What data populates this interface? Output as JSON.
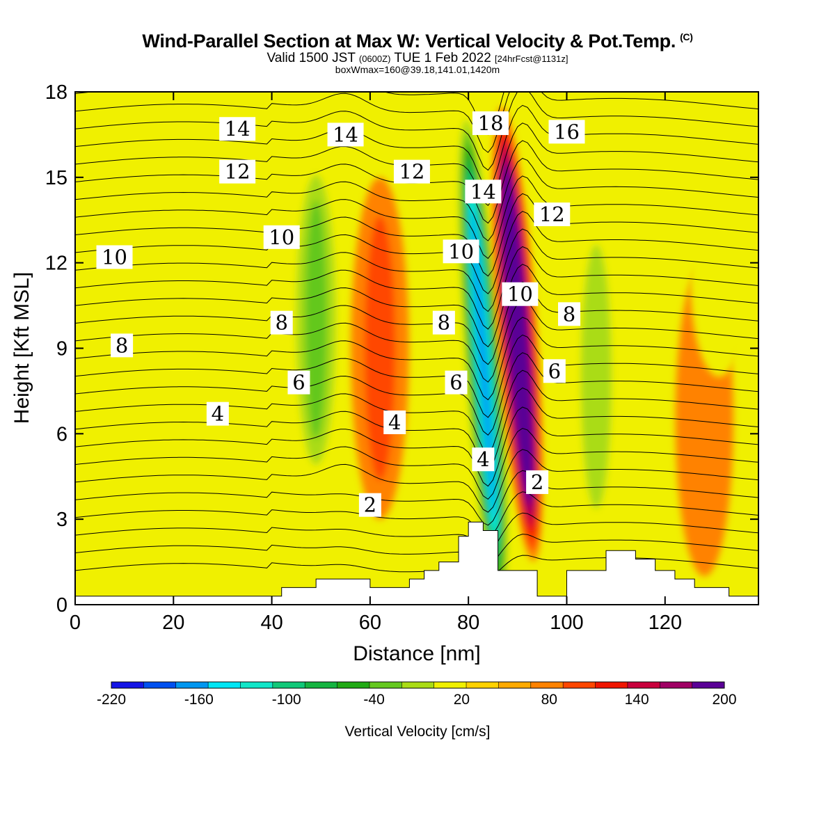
{
  "chart_data": {
    "type": "heatmap",
    "title": "Wind-Parallel Section at Max W: Vertical Velocity & Pot.Temp.",
    "title_mark": "(C)",
    "subtitle_main": "Valid 1500 JST",
    "subtitle_zulu": "(0600Z)",
    "subtitle_date": "TUE 1 Feb 2022",
    "subtitle_fcst": "[24hrFcst@1131z]",
    "subtitle2": "boxWmax=160@39.18,141.01,1420m",
    "xlabel": "Distance [nm]",
    "ylabel": "Height [Kft MSL]",
    "xlim": [
      0,
      139
    ],
    "ylim": [
      0,
      18
    ],
    "xticks": [
      0,
      20,
      40,
      60,
      80,
      100,
      120
    ],
    "yticks": [
      0,
      3,
      6,
      9,
      12,
      15,
      18
    ],
    "colorbar": {
      "title": "Vertical Velocity [cm/s]",
      "min": -220,
      "max": 200,
      "step": 20,
      "tick_values": [
        -220,
        -160,
        -100,
        -40,
        20,
        80,
        140,
        200
      ],
      "colors": [
        "#1414e6",
        "#0050f0",
        "#0096f0",
        "#00e6f5",
        "#10e6c8",
        "#10c878",
        "#14b440",
        "#20aa14",
        "#64c81e",
        "#aadc14",
        "#f0f000",
        "#ffd200",
        "#ffaa00",
        "#ff8200",
        "#ff4600",
        "#f01400",
        "#c8003c",
        "#a00064",
        "#5a0096"
      ]
    },
    "vertical_velocity_features": [
      {
        "kind": "downdraft",
        "x": 83,
        "y_range": [
          0,
          18
        ],
        "peak_cm_s": -180
      },
      {
        "kind": "updraft",
        "x": 90,
        "y_range": [
          2,
          18
        ],
        "peak_cm_s": 200
      },
      {
        "kind": "downdraft",
        "x": 49,
        "y_range": [
          4,
          16
        ],
        "peak_cm_s": -60
      },
      {
        "kind": "updraft",
        "x": 62,
        "y_range": [
          3,
          15
        ],
        "peak_cm_s": 60
      },
      {
        "kind": "downdraft",
        "x": 106,
        "y_range": [
          2,
          14
        ],
        "peak_cm_s": -40
      },
      {
        "kind": "updraft",
        "x": 128,
        "y_range": [
          1,
          12
        ],
        "peak_cm_s": 40
      },
      {
        "kind": "downdraft",
        "x": 131,
        "y_range": [
          8,
          15
        ],
        "peak_cm_s": -30
      },
      {
        "kind": "updraft",
        "x": 14,
        "y_range": [
          7,
          16
        ],
        "peak_cm_s": 30
      }
    ],
    "potential_temperature_contour_labels": [
      {
        "value": "14",
        "x": 33,
        "y": 16.7
      },
      {
        "value": "14",
        "x": 55,
        "y": 16.5
      },
      {
        "value": "18",
        "x": 84.5,
        "y": 16.9
      },
      {
        "value": "16",
        "x": 100,
        "y": 16.6
      },
      {
        "value": "12",
        "x": 33,
        "y": 15.2
      },
      {
        "value": "12",
        "x": 68.5,
        "y": 15.2
      },
      {
        "value": "14",
        "x": 83,
        "y": 14.5
      },
      {
        "value": "12",
        "x": 97,
        "y": 13.7
      },
      {
        "value": "10",
        "x": 42,
        "y": 12.9
      },
      {
        "value": "10",
        "x": 8,
        "y": 12.2
      },
      {
        "value": "10",
        "x": 78.5,
        "y": 12.4
      },
      {
        "value": "10",
        "x": 90.5,
        "y": 10.9
      },
      {
        "value": "8",
        "x": 100.5,
        "y": 10.2
      },
      {
        "value": "8",
        "x": 42,
        "y": 9.9
      },
      {
        "value": "8",
        "x": 75,
        "y": 9.9
      },
      {
        "value": "8",
        "x": 9.5,
        "y": 9.1
      },
      {
        "value": "6",
        "x": 97.5,
        "y": 8.2
      },
      {
        "value": "6",
        "x": 45.5,
        "y": 7.8
      },
      {
        "value": "6",
        "x": 77.5,
        "y": 7.8
      },
      {
        "value": "4",
        "x": 29,
        "y": 6.7
      },
      {
        "value": "4",
        "x": 65,
        "y": 6.4
      },
      {
        "value": "4",
        "x": 83,
        "y": 5.1
      },
      {
        "value": "2",
        "x": 94,
        "y": 4.3
      },
      {
        "value": "2",
        "x": 60,
        "y": 3.5
      }
    ],
    "terrain_kft": [
      [
        0,
        0.3
      ],
      [
        40,
        0.3
      ],
      [
        42,
        0.6
      ],
      [
        49,
        0.9
      ],
      [
        60,
        0.6
      ],
      [
        68,
        0.9
      ],
      [
        71,
        1.2
      ],
      [
        74,
        1.5
      ],
      [
        78,
        2.4
      ],
      [
        80,
        2.9
      ],
      [
        83,
        2.6
      ],
      [
        86,
        1.2
      ],
      [
        94,
        0.3
      ],
      [
        100,
        1.2
      ],
      [
        108,
        1.9
      ],
      [
        114,
        1.6
      ],
      [
        118,
        1.2
      ],
      [
        122,
        0.9
      ],
      [
        126,
        0.6
      ],
      [
        133,
        0.3
      ],
      [
        139,
        0.3
      ]
    ]
  }
}
